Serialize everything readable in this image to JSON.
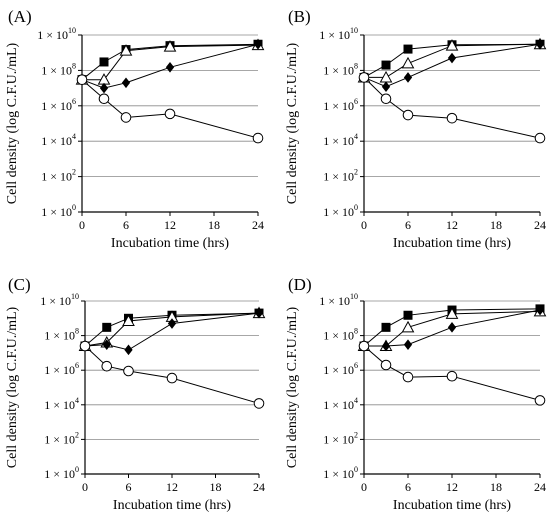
{
  "chart_data": [
    {
      "type": "scatter",
      "panel": "(A)",
      "xlabel": "Incubation time (hrs)",
      "ylabel": "Cell density (log C.F.U./mL)",
      "x_ticks": [
        0,
        6,
        12,
        18,
        24
      ],
      "xlim": [
        0,
        24
      ],
      "y_scale": "log",
      "ylim": [
        1,
        10000000000
      ],
      "y_ticks": [
        {
          "base": "1 × 10",
          "exp": "0"
        },
        {
          "base": "1 × 10",
          "exp": "2"
        },
        {
          "base": "1 × 10",
          "exp": "4"
        },
        {
          "base": "1 × 10",
          "exp": "6"
        },
        {
          "base": "1 × 10",
          "exp": "8"
        },
        {
          "base": "1 × 10",
          "exp": "10"
        }
      ],
      "grid": "horizontal",
      "x": [
        0,
        3,
        6,
        12,
        24
      ],
      "series": [
        {
          "marker": "square-filled",
          "values": [
            30000000,
            300000000,
            1500000000,
            2500000000,
            3000000000
          ]
        },
        {
          "marker": "triangle-open",
          "values": [
            30000000,
            30000000,
            1300000000,
            2200000000,
            2700000000
          ]
        },
        {
          "marker": "diamond-filled",
          "values": [
            30000000,
            10000000,
            20000000,
            150000000,
            3000000000
          ]
        },
        {
          "marker": "circle-open",
          "values": [
            30000000,
            2500000,
            220000,
            350000,
            15000
          ]
        }
      ]
    },
    {
      "type": "scatter",
      "panel": "(B)",
      "xlabel": "Incubation time (hrs)",
      "ylabel": "Cell density (log C.F.U./mL)",
      "x_ticks": [
        0,
        6,
        12,
        18,
        24
      ],
      "xlim": [
        0,
        24
      ],
      "y_scale": "log",
      "ylim": [
        1,
        10000000000
      ],
      "y_ticks": [
        {
          "base": "1 × 10",
          "exp": "0"
        },
        {
          "base": "1 × 10",
          "exp": "2"
        },
        {
          "base": "1 × 10",
          "exp": "4"
        },
        {
          "base": "1 × 10",
          "exp": "6"
        },
        {
          "base": "1 × 10",
          "exp": "8"
        },
        {
          "base": "1 × 10",
          "exp": "10"
        }
      ],
      "grid": "horizontal",
      "x": [
        0,
        3,
        6,
        12,
        24
      ],
      "series": [
        {
          "marker": "square-filled",
          "values": [
            40000000,
            200000000,
            1600000000,
            2800000000,
            3000000000
          ]
        },
        {
          "marker": "triangle-open",
          "values": [
            40000000,
            40000000,
            250000000,
            2500000000,
            3000000000
          ]
        },
        {
          "marker": "diamond-filled",
          "values": [
            40000000,
            12000000,
            40000000,
            500000000,
            3000000000
          ]
        },
        {
          "marker": "circle-open",
          "values": [
            40000000,
            2500000,
            300000,
            200000,
            15000
          ]
        }
      ]
    },
    {
      "type": "scatter",
      "panel": "(C)",
      "xlabel": "Incubation time (hrs)",
      "ylabel": "Cell density (log C.F.U./mL)",
      "x_ticks": [
        0,
        6,
        12,
        18,
        24
      ],
      "xlim": [
        0,
        24
      ],
      "y_scale": "log",
      "ylim": [
        1,
        10000000000
      ],
      "y_ticks": [
        {
          "base": "1 × 10",
          "exp": "0"
        },
        {
          "base": "1 × 10",
          "exp": "2"
        },
        {
          "base": "1 × 10",
          "exp": "4"
        },
        {
          "base": "1 × 10",
          "exp": "6"
        },
        {
          "base": "1 × 10",
          "exp": "8"
        },
        {
          "base": "1 × 10",
          "exp": "10"
        }
      ],
      "grid": "horizontal",
      "x": [
        0,
        3,
        6,
        12,
        24
      ],
      "series": [
        {
          "marker": "square-filled",
          "values": [
            25000000,
            300000000,
            1000000000,
            1500000000,
            2000000000
          ]
        },
        {
          "marker": "triangle-open",
          "values": [
            25000000,
            40000000,
            700000000,
            1200000000,
            2000000000
          ]
        },
        {
          "marker": "diamond-filled",
          "values": [
            25000000,
            30000000,
            15000000,
            500000000,
            2000000000
          ]
        },
        {
          "marker": "circle-open",
          "values": [
            25000000,
            1700000,
            900000,
            350000,
            12000
          ]
        }
      ]
    },
    {
      "type": "scatter",
      "panel": "(D)",
      "xlabel": "Incubation time (hrs)",
      "ylabel": "Cell density (log C.F.U./mL)",
      "x_ticks": [
        0,
        6,
        12,
        18,
        24
      ],
      "xlim": [
        0,
        24
      ],
      "y_scale": "log",
      "ylim": [
        1,
        10000000000
      ],
      "y_ticks": [
        {
          "base": "1 × 10",
          "exp": "0"
        },
        {
          "base": "1 × 10",
          "exp": "2"
        },
        {
          "base": "1 × 10",
          "exp": "4"
        },
        {
          "base": "1 × 10",
          "exp": "6"
        },
        {
          "base": "1 × 10",
          "exp": "8"
        },
        {
          "base": "1 × 10",
          "exp": "10"
        }
      ],
      "grid": "horizontal",
      "x": [
        0,
        3,
        6,
        12,
        24
      ],
      "series": [
        {
          "marker": "square-filled",
          "values": [
            25000000,
            300000000,
            1500000000,
            3000000000,
            3500000000
          ]
        },
        {
          "marker": "triangle-open",
          "values": [
            25000000,
            25000000,
            300000000,
            1800000000,
            2500000000
          ]
        },
        {
          "marker": "diamond-filled",
          "values": [
            25000000,
            25000000,
            30000000,
            300000000,
            3000000000
          ]
        },
        {
          "marker": "circle-open",
          "values": [
            25000000,
            2000000,
            400000,
            450000,
            18000
          ]
        }
      ]
    }
  ]
}
